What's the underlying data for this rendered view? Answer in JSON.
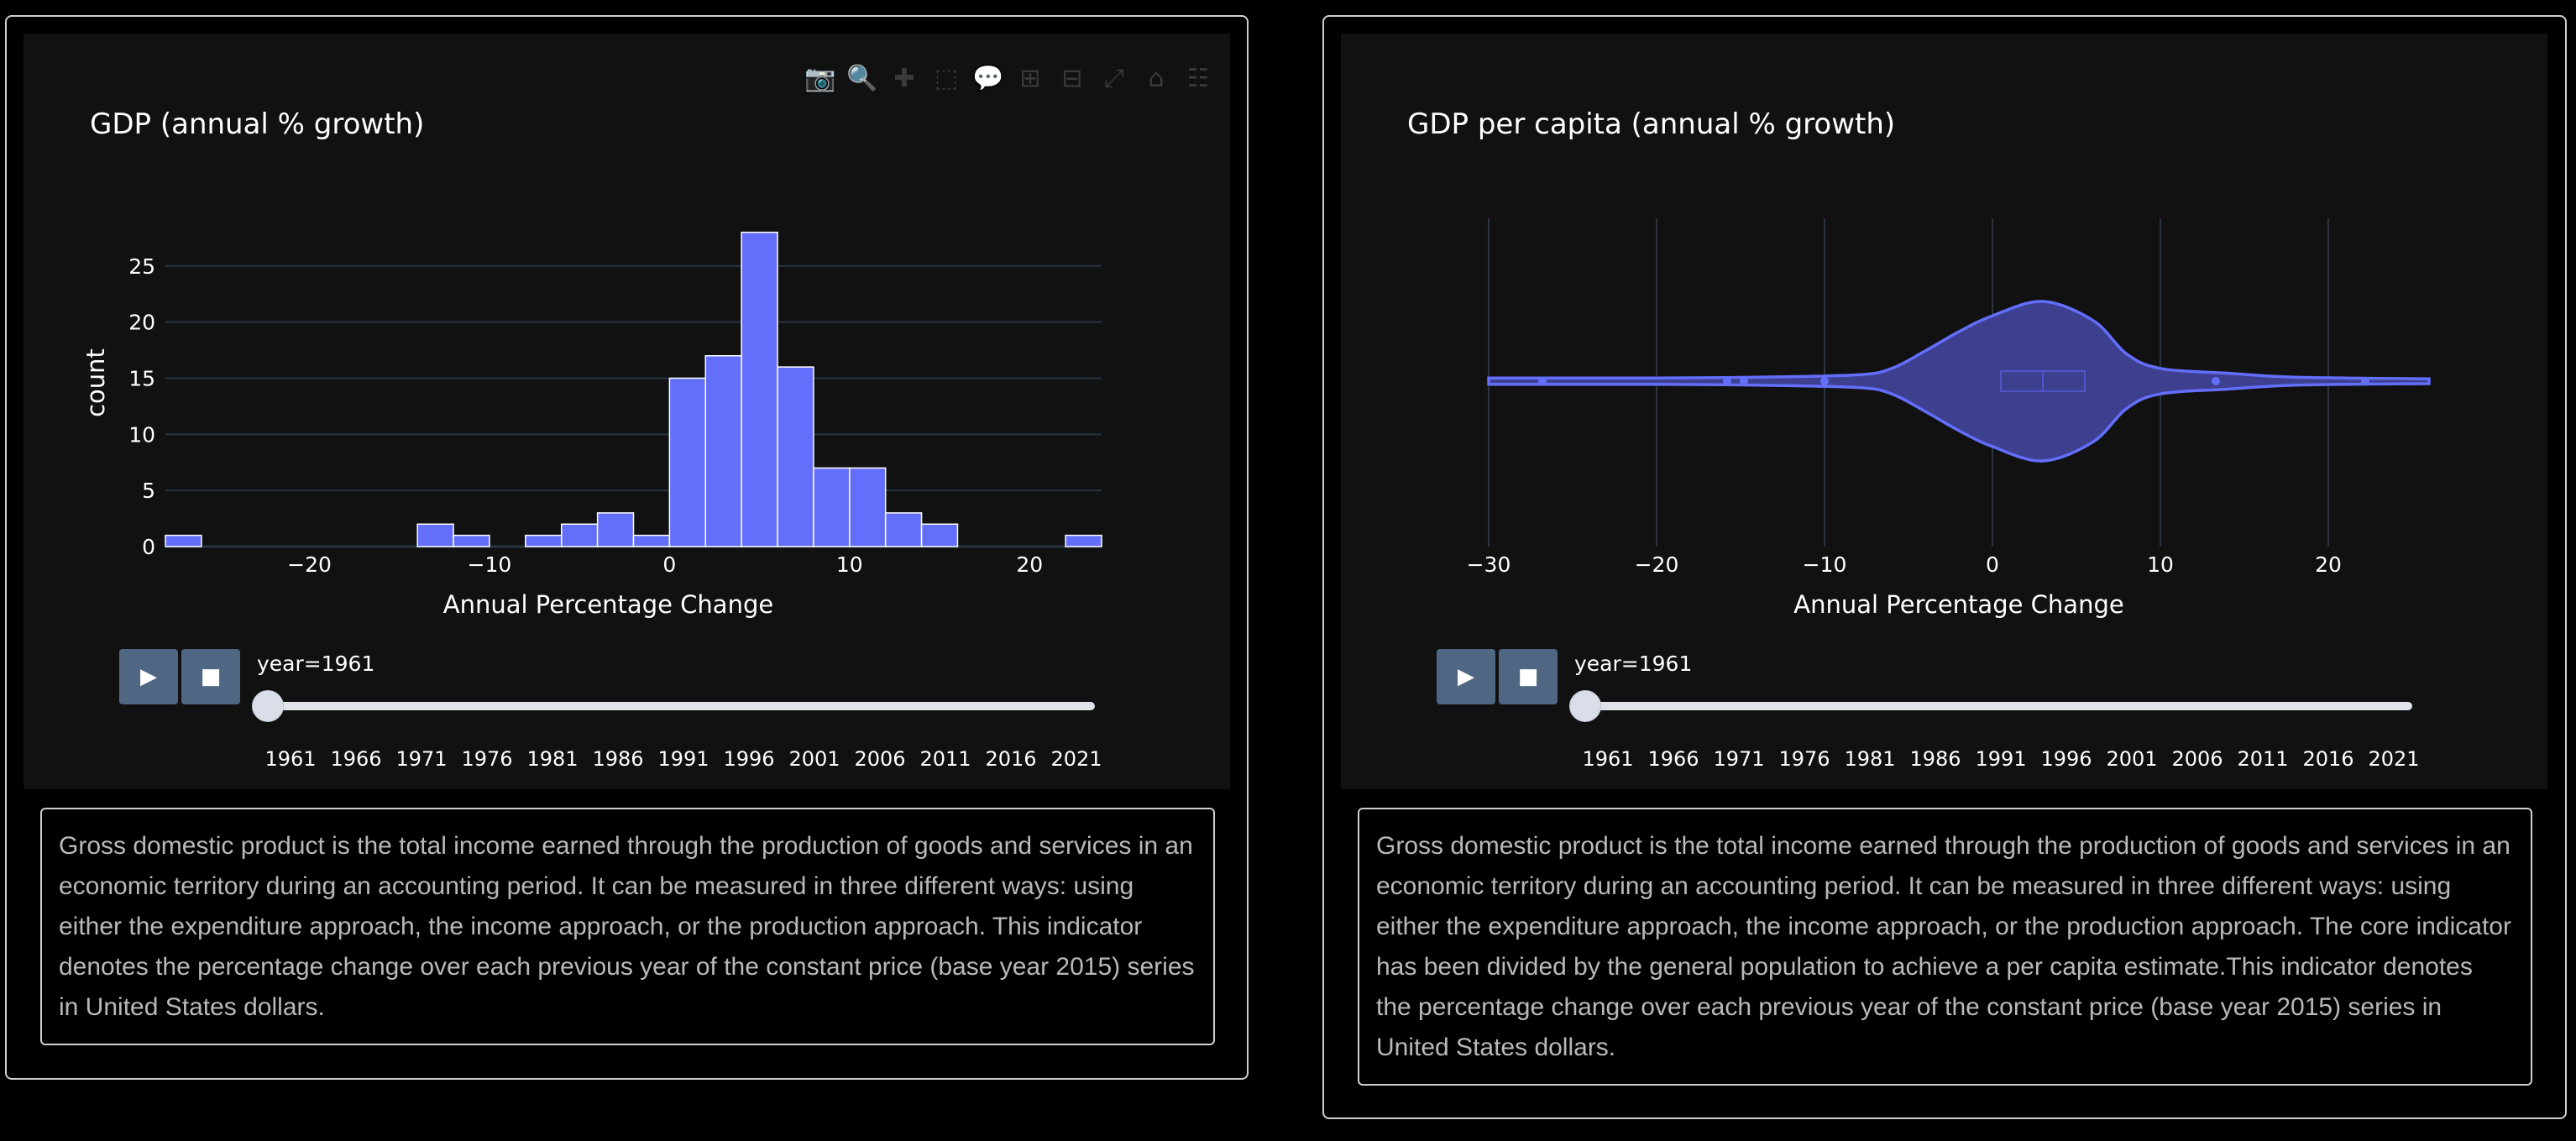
{
  "modebar_icons": [
    "camera-icon",
    "zoom-icon",
    "pan-icon",
    "box-select-icon",
    "lasso-icon",
    "zoom-in-icon",
    "zoom-out-icon",
    "autoscale-icon",
    "reset-icon",
    "plotly-logo-icon"
  ],
  "colors": {
    "bar": "#636efa",
    "violin_fill": "#3d3f8f",
    "violin_line": "#636efa",
    "panel": "#111111",
    "grid": "#283442",
    "text": "#ffffff",
    "button": "#506784"
  },
  "slider_ticks": [
    "1961",
    "1966",
    "1971",
    "1976",
    "1981",
    "1986",
    "1991",
    "1996",
    "2001",
    "2006",
    "2011",
    "2016",
    "2021"
  ],
  "left": {
    "description": "Gross domestic product is the total income earned through the production of goods and services in an economic territory during an accounting period. It can be measured in three different ways: using either the expenditure approach, the income approach, or the production approach. This indicator denotes the percentage change over each previous year of the constant price (base year 2015) series in United States dollars.",
    "slider_label": "year=1961",
    "chart_data": {
      "type": "bar",
      "title": "GDP (annual % growth)",
      "xlabel": "Annual Percentage Change",
      "ylabel": "count",
      "bin_width": 2,
      "bins": [
        {
          "start": -28,
          "count": 1
        },
        {
          "start": -14,
          "count": 2
        },
        {
          "start": -12,
          "count": 1
        },
        {
          "start": -8,
          "count": 1
        },
        {
          "start": -6,
          "count": 2
        },
        {
          "start": -4,
          "count": 3
        },
        {
          "start": -2,
          "count": 1
        },
        {
          "start": 0,
          "count": 15
        },
        {
          "start": 2,
          "count": 17
        },
        {
          "start": 4,
          "count": 28
        },
        {
          "start": 6,
          "count": 16
        },
        {
          "start": 8,
          "count": 7
        },
        {
          "start": 10,
          "count": 7
        },
        {
          "start": 12,
          "count": 3
        },
        {
          "start": 14,
          "count": 2
        },
        {
          "start": 22,
          "count": 1
        }
      ],
      "xlim": [
        -28,
        24
      ],
      "ylim": [
        0,
        28.5
      ],
      "xticks": [
        -20,
        -10,
        0,
        10,
        20
      ],
      "yticks": [
        0,
        5,
        10,
        15,
        20,
        25
      ],
      "grid": true
    }
  },
  "right": {
    "description": "Gross domestic product is the total income earned through the production of goods and services in an economic territory during an accounting period. It can be measured in three different ways: using either the expenditure approach, the income approach, or the production approach. The core indicator has been divided by the general population to achieve a per capita estimate.This indicator denotes the percentage change over each previous year of the constant price (base year 2015) series in United States dollars.",
    "slider_label": "year=1961",
    "chart_data": {
      "type": "violin",
      "title": "GDP per capita (annual % growth)",
      "xlabel": "Annual Percentage Change",
      "xlim": [
        -31,
        27
      ],
      "xticks": [
        -30,
        -20,
        -10,
        0,
        10,
        20
      ],
      "grid": true,
      "density_profile": [
        {
          "x": -30,
          "w": 0.04
        },
        {
          "x": -20,
          "w": 0.04
        },
        {
          "x": -14,
          "w": 0.05
        },
        {
          "x": -8,
          "w": 0.08
        },
        {
          "x": -6,
          "w": 0.16
        },
        {
          "x": -4,
          "w": 0.38
        },
        {
          "x": -2,
          "w": 0.62
        },
        {
          "x": 0,
          "w": 0.82
        },
        {
          "x": 3,
          "w": 1.0
        },
        {
          "x": 6,
          "w": 0.76
        },
        {
          "x": 8,
          "w": 0.34
        },
        {
          "x": 10,
          "w": 0.16
        },
        {
          "x": 14,
          "w": 0.1
        },
        {
          "x": 18,
          "w": 0.05
        },
        {
          "x": 26,
          "w": 0.03
        }
      ],
      "outliers": [
        -26.8,
        -15.8,
        -14.8,
        -10.0,
        13.3,
        22.2
      ],
      "box": {
        "q1": 0.5,
        "median": 3.0,
        "q3": 5.5
      }
    }
  }
}
